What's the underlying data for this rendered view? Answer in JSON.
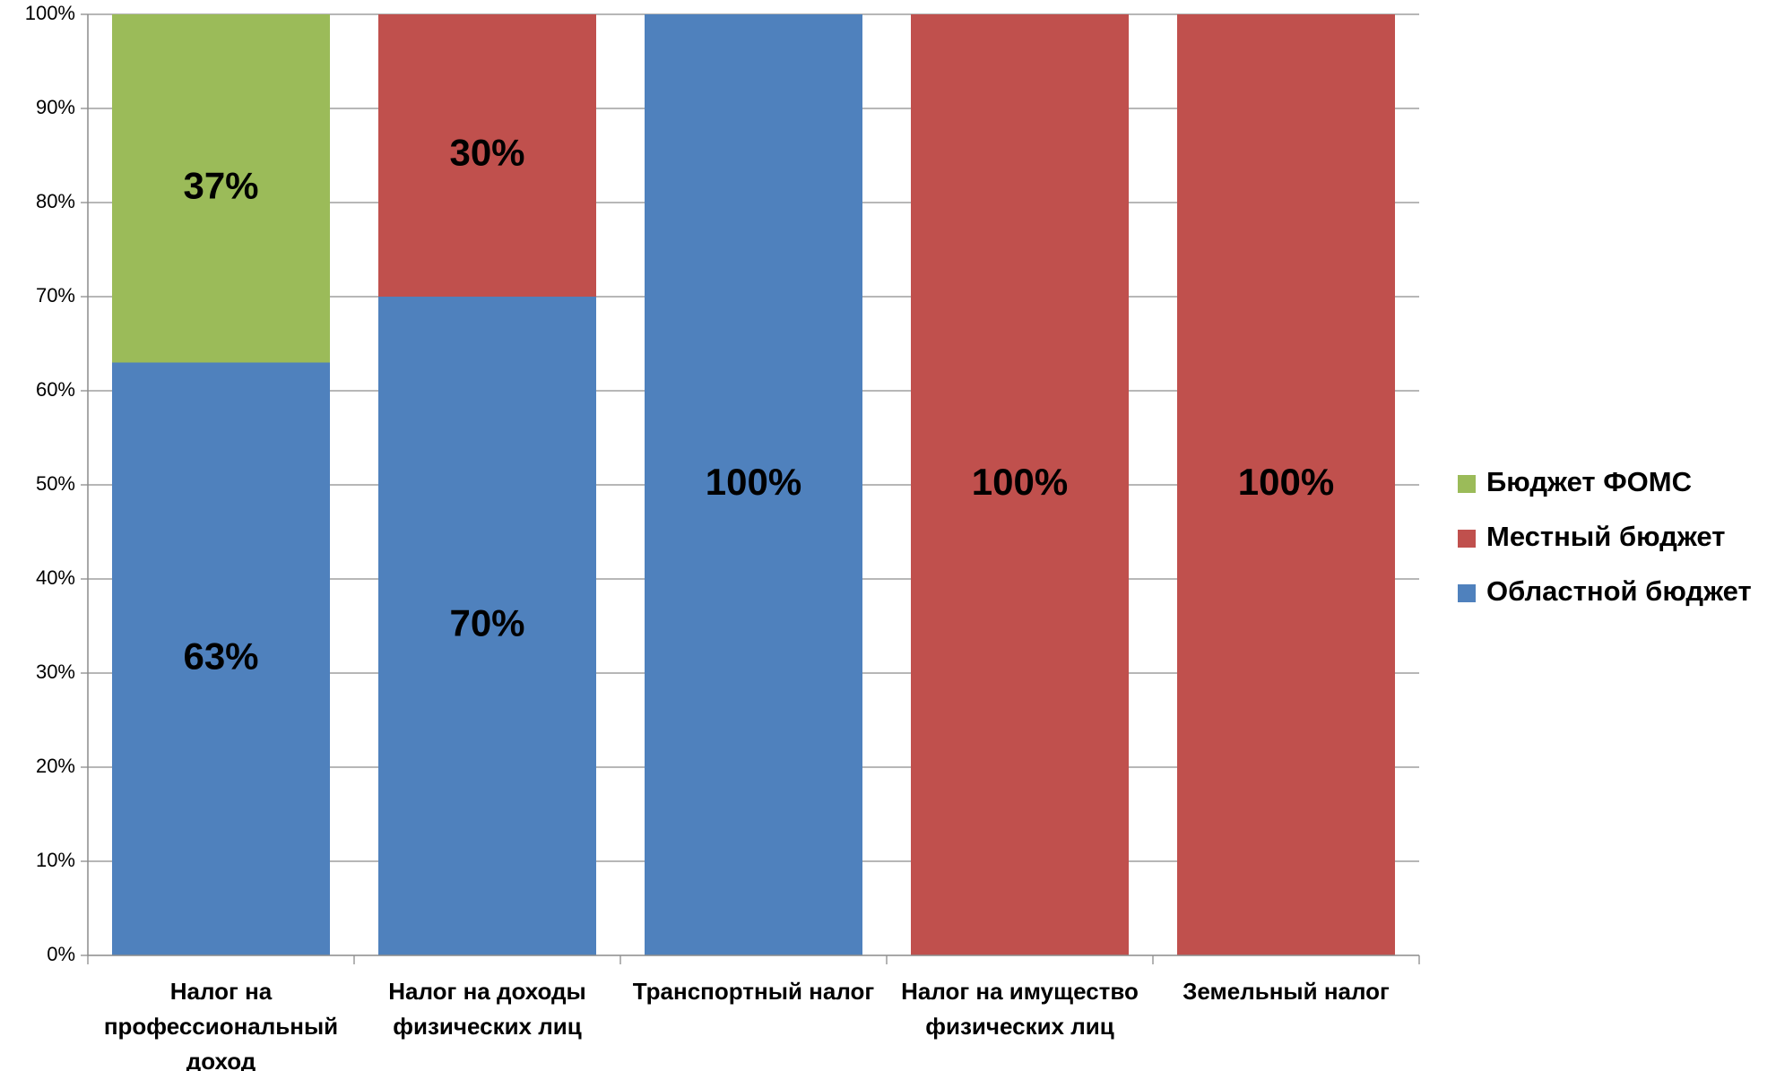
{
  "chart_data": {
    "type": "bar",
    "stacked": true,
    "percent": true,
    "categories": [
      [
        "Налог на",
        "профессиональный",
        "доход"
      ],
      [
        "Налог на доходы",
        "физических лиц"
      ],
      [
        "Транспортный налог"
      ],
      [
        "Налог на имущество",
        "физических лиц"
      ],
      [
        "Земельный налог"
      ]
    ],
    "series": [
      {
        "name": "Областной бюджет",
        "color": "#4F81BD",
        "values": [
          63,
          70,
          100,
          0,
          0
        ],
        "labels": [
          "63%",
          "70%",
          "100%",
          "",
          ""
        ]
      },
      {
        "name": "Местный бюджет",
        "color": "#C0504D",
        "values": [
          0,
          30,
          0,
          100,
          100
        ],
        "labels": [
          "",
          "30%",
          "",
          "100%",
          "100%"
        ]
      },
      {
        "name": "Бюджет ФОМС",
        "color": "#9BBB59",
        "values": [
          37,
          0,
          0,
          0,
          0
        ],
        "labels": [
          "37%",
          "",
          "",
          "",
          ""
        ]
      }
    ],
    "legend_order": [
      "Бюджет ФОМС",
      "Местный бюджет",
      "Областной бюджет"
    ],
    "legend_position": "right",
    "ylim": [
      0,
      100
    ],
    "yticks": [
      "0%",
      "10%",
      "20%",
      "30%",
      "40%",
      "50%",
      "60%",
      "70%",
      "80%",
      "90%",
      "100%"
    ],
    "grid": true,
    "title": "",
    "xlabel": "",
    "ylabel": ""
  }
}
